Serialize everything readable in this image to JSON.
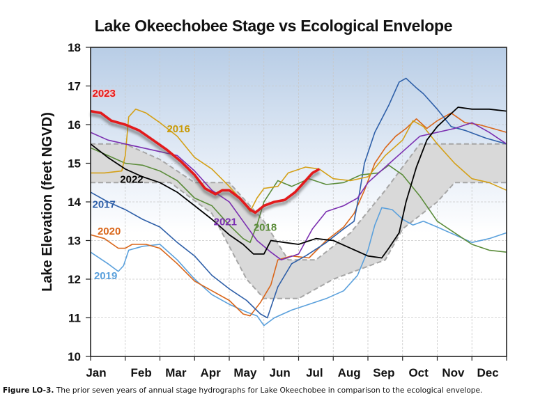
{
  "chart_data": {
    "type": "line",
    "title": "Lake Okeechobee Stage vs Ecological Envelope",
    "xlabel": "",
    "ylabel": "Lake Elevation (feet NGVD)",
    "ylim": [
      10,
      18
    ],
    "xlim": [
      0,
      12
    ],
    "yticks": [
      10,
      11,
      12,
      13,
      14,
      15,
      16,
      17,
      18
    ],
    "categories": [
      "Jan",
      "Feb",
      "Mar",
      "Apr",
      "May",
      "Jun",
      "Jul",
      "Aug",
      "Sep",
      "Oct",
      "Nov",
      "Dec"
    ],
    "grid": true,
    "x_units": "months since Jan 1",
    "envelope": {
      "name": "Ecological Envelope",
      "color": "#d9d9d9",
      "upper": [
        [
          0,
          15.5
        ],
        [
          1,
          15.5
        ],
        [
          2,
          15.1
        ],
        [
          3,
          14.5
        ],
        [
          4,
          14.5
        ],
        [
          5,
          13.5
        ],
        [
          5.7,
          12.5
        ],
        [
          6.5,
          12.5
        ],
        [
          7.5,
          13.2
        ],
        [
          8.5,
          14.3
        ],
        [
          9.5,
          15.5
        ],
        [
          12,
          15.5
        ]
      ],
      "lower": [
        [
          0,
          14.5
        ],
        [
          2.3,
          14.5
        ],
        [
          3.5,
          13.7
        ],
        [
          4.5,
          12.0
        ],
        [
          5,
          11.5
        ],
        [
          6,
          11.5
        ],
        [
          7,
          12.0
        ],
        [
          8.5,
          12.5
        ],
        [
          9,
          13.3
        ],
        [
          10,
          14.0
        ],
        [
          10.5,
          14.5
        ],
        [
          12,
          14.5
        ]
      ]
    },
    "series": [
      {
        "name": "2023",
        "color": "#e31a1c",
        "label_color": "#e31a1c",
        "values": [
          [
            0,
            16.35
          ],
          [
            0.3,
            16.3
          ],
          [
            0.6,
            16.1
          ],
          [
            1,
            16.0
          ],
          [
            1.4,
            15.85
          ],
          [
            1.8,
            15.6
          ],
          [
            2.2,
            15.35
          ],
          [
            2.6,
            15.05
          ],
          [
            3,
            14.7
          ],
          [
            3.3,
            14.35
          ],
          [
            3.6,
            14.2
          ],
          [
            3.8,
            14.3
          ],
          [
            4.0,
            14.3
          ],
          [
            4.3,
            14.1
          ],
          [
            4.6,
            13.8
          ],
          [
            4.75,
            13.72
          ],
          [
            5.0,
            13.9
          ],
          [
            5.3,
            14.0
          ],
          [
            5.6,
            14.05
          ],
          [
            5.9,
            14.25
          ],
          [
            6.2,
            14.55
          ],
          [
            6.4,
            14.75
          ],
          [
            6.6,
            14.85
          ]
        ]
      },
      {
        "name": "2022",
        "color": "#000000",
        "label_color": "#000000",
        "values": [
          [
            0,
            15.5
          ],
          [
            0.5,
            15.15
          ],
          [
            1,
            14.85
          ],
          [
            1.5,
            14.65
          ],
          [
            2,
            14.5
          ],
          [
            2.5,
            14.25
          ],
          [
            3,
            13.9
          ],
          [
            3.5,
            13.55
          ],
          [
            4,
            13.15
          ],
          [
            4.4,
            12.9
          ],
          [
            4.7,
            12.65
          ],
          [
            5,
            12.65
          ],
          [
            5.2,
            13.0
          ],
          [
            5.6,
            12.95
          ],
          [
            6,
            12.9
          ],
          [
            6.5,
            13.05
          ],
          [
            7,
            13.0
          ],
          [
            7.5,
            12.8
          ],
          [
            8,
            12.6
          ],
          [
            8.4,
            12.55
          ],
          [
            8.6,
            12.8
          ],
          [
            8.9,
            13.2
          ],
          [
            9.1,
            14.0
          ],
          [
            9.4,
            14.9
          ],
          [
            9.7,
            15.6
          ],
          [
            10,
            15.95
          ],
          [
            10.3,
            16.2
          ],
          [
            10.6,
            16.45
          ],
          [
            11,
            16.4
          ],
          [
            11.5,
            16.4
          ],
          [
            12,
            16.35
          ]
        ]
      },
      {
        "name": "2021",
        "color": "#7b2fb0",
        "label_color": "#7b2fb0",
        "values": [
          [
            0,
            15.8
          ],
          [
            0.5,
            15.6
          ],
          [
            1,
            15.5
          ],
          [
            1.5,
            15.4
          ],
          [
            2,
            15.3
          ],
          [
            2.5,
            15.2
          ],
          [
            3,
            14.8
          ],
          [
            3.5,
            14.3
          ],
          [
            4,
            14.0
          ],
          [
            4.4,
            13.5
          ],
          [
            4.8,
            13.0
          ],
          [
            5.2,
            12.7
          ],
          [
            5.5,
            12.5
          ],
          [
            6,
            12.65
          ],
          [
            6.4,
            13.3
          ],
          [
            6.8,
            13.75
          ],
          [
            7.3,
            13.9
          ],
          [
            7.7,
            14.1
          ],
          [
            8,
            14.5
          ],
          [
            8.5,
            14.9
          ],
          [
            9,
            15.3
          ],
          [
            9.5,
            15.7
          ],
          [
            10,
            15.8
          ],
          [
            10.5,
            15.9
          ],
          [
            11,
            16.05
          ],
          [
            11.5,
            15.8
          ],
          [
            12,
            15.5
          ]
        ]
      },
      {
        "name": "2016",
        "color": "#d4a017",
        "label_color": "#c99a06",
        "values": [
          [
            0,
            14.75
          ],
          [
            0.4,
            14.75
          ],
          [
            0.9,
            14.8
          ],
          [
            1.0,
            15.2
          ],
          [
            1.1,
            16.2
          ],
          [
            1.3,
            16.4
          ],
          [
            1.6,
            16.3
          ],
          [
            2,
            16.05
          ],
          [
            2.5,
            15.7
          ],
          [
            3,
            15.15
          ],
          [
            3.5,
            14.85
          ],
          [
            4,
            14.4
          ],
          [
            4.4,
            14.0
          ],
          [
            4.6,
            13.75
          ],
          [
            4.8,
            14.1
          ],
          [
            5,
            14.35
          ],
          [
            5.4,
            14.4
          ],
          [
            5.7,
            14.75
          ],
          [
            6.2,
            14.9
          ],
          [
            6.6,
            14.85
          ],
          [
            7,
            14.6
          ],
          [
            7.5,
            14.55
          ],
          [
            8,
            14.65
          ],
          [
            8.5,
            15.2
          ],
          [
            9,
            15.6
          ],
          [
            9.3,
            16.1
          ],
          [
            9.6,
            15.95
          ],
          [
            10,
            15.5
          ],
          [
            10.5,
            15.0
          ],
          [
            11,
            14.6
          ],
          [
            11.5,
            14.5
          ],
          [
            12,
            14.3
          ]
        ]
      },
      {
        "name": "2018",
        "color": "#5b8c3a",
        "label_color": "#5b8c3a",
        "values": [
          [
            0,
            15.4
          ],
          [
            0.5,
            15.2
          ],
          [
            1,
            15.0
          ],
          [
            1.5,
            14.95
          ],
          [
            2,
            14.8
          ],
          [
            2.5,
            14.55
          ],
          [
            3,
            14.1
          ],
          [
            3.5,
            13.9
          ],
          [
            4,
            13.4
          ],
          [
            4.4,
            13.05
          ],
          [
            4.6,
            12.95
          ],
          [
            4.8,
            13.4
          ],
          [
            5,
            14.0
          ],
          [
            5.4,
            14.55
          ],
          [
            5.8,
            14.4
          ],
          [
            6.3,
            14.6
          ],
          [
            6.8,
            14.45
          ],
          [
            7.3,
            14.5
          ],
          [
            7.8,
            14.7
          ],
          [
            8.3,
            14.75
          ],
          [
            8.6,
            14.95
          ],
          [
            9,
            14.7
          ],
          [
            9.5,
            14.15
          ],
          [
            10,
            13.5
          ],
          [
            10.5,
            13.2
          ],
          [
            11,
            12.9
          ],
          [
            11.5,
            12.75
          ],
          [
            12,
            12.7
          ]
        ]
      },
      {
        "name": "2017",
        "color": "#2e5fa8",
        "label_color": "#2e5fa8",
        "values": [
          [
            0,
            14.25
          ],
          [
            0.5,
            14.0
          ],
          [
            1,
            13.8
          ],
          [
            1.5,
            13.55
          ],
          [
            2,
            13.35
          ],
          [
            2.5,
            12.95
          ],
          [
            3,
            12.6
          ],
          [
            3.5,
            12.1
          ],
          [
            4,
            11.75
          ],
          [
            4.5,
            11.45
          ],
          [
            4.9,
            11.1
          ],
          [
            5.1,
            11.0
          ],
          [
            5.4,
            11.8
          ],
          [
            5.8,
            12.4
          ],
          [
            6.2,
            12.6
          ],
          [
            6.8,
            12.95
          ],
          [
            7.3,
            13.3
          ],
          [
            7.6,
            13.5
          ],
          [
            7.75,
            14.2
          ],
          [
            7.9,
            15.0
          ],
          [
            8.2,
            15.8
          ],
          [
            8.6,
            16.5
          ],
          [
            8.9,
            17.1
          ],
          [
            9.1,
            17.2
          ],
          [
            9.4,
            16.95
          ],
          [
            9.6,
            16.8
          ],
          [
            10,
            16.4
          ],
          [
            10.4,
            15.95
          ],
          [
            10.8,
            15.85
          ],
          [
            11.4,
            15.65
          ],
          [
            12,
            15.5
          ]
        ]
      },
      {
        "name": "2020",
        "color": "#d9661a",
        "label_color": "#d9661a",
        "values": [
          [
            0,
            13.15
          ],
          [
            0.4,
            13.05
          ],
          [
            0.8,
            12.8
          ],
          [
            1.0,
            12.8
          ],
          [
            1.2,
            12.9
          ],
          [
            1.6,
            12.9
          ],
          [
            2,
            12.8
          ],
          [
            2.5,
            12.4
          ],
          [
            3,
            11.95
          ],
          [
            3.5,
            11.7
          ],
          [
            4,
            11.45
          ],
          [
            4.4,
            11.1
          ],
          [
            4.6,
            11.05
          ],
          [
            4.9,
            11.4
          ],
          [
            5.2,
            11.85
          ],
          [
            5.4,
            12.5
          ],
          [
            5.8,
            12.6
          ],
          [
            6.3,
            12.55
          ],
          [
            6.8,
            13.0
          ],
          [
            7.3,
            13.35
          ],
          [
            7.6,
            13.7
          ],
          [
            7.9,
            14.3
          ],
          [
            8.2,
            15.0
          ],
          [
            8.5,
            15.4
          ],
          [
            8.8,
            15.7
          ],
          [
            9.1,
            15.9
          ],
          [
            9.4,
            16.15
          ],
          [
            9.7,
            15.9
          ],
          [
            10,
            16.1
          ],
          [
            10.4,
            16.3
          ],
          [
            10.8,
            16.05
          ],
          [
            11.2,
            16.0
          ],
          [
            11.6,
            15.9
          ],
          [
            12,
            15.8
          ]
        ]
      },
      {
        "name": "2019",
        "color": "#5aa0dc",
        "label_color": "#5aa0dc",
        "values": [
          [
            0,
            12.7
          ],
          [
            0.5,
            12.4
          ],
          [
            0.8,
            12.2
          ],
          [
            0.95,
            12.35
          ],
          [
            1.1,
            12.75
          ],
          [
            1.5,
            12.85
          ],
          [
            2,
            12.9
          ],
          [
            2.5,
            12.5
          ],
          [
            3,
            12.0
          ],
          [
            3.5,
            11.6
          ],
          [
            4,
            11.35
          ],
          [
            4.5,
            11.15
          ],
          [
            4.8,
            11.05
          ],
          [
            5,
            10.8
          ],
          [
            5.3,
            11.0
          ],
          [
            5.8,
            11.2
          ],
          [
            6.3,
            11.35
          ],
          [
            6.8,
            11.5
          ],
          [
            7.3,
            11.7
          ],
          [
            7.7,
            12.1
          ],
          [
            8,
            12.75
          ],
          [
            8.2,
            13.4
          ],
          [
            8.4,
            13.85
          ],
          [
            8.7,
            13.8
          ],
          [
            9,
            13.55
          ],
          [
            9.3,
            13.4
          ],
          [
            9.6,
            13.5
          ],
          [
            10,
            13.35
          ],
          [
            10.5,
            13.15
          ],
          [
            11,
            12.95
          ],
          [
            11.5,
            13.05
          ],
          [
            12,
            13.2
          ]
        ]
      }
    ]
  },
  "caption": {
    "label": "Figure LO-3.",
    "text": " The prior seven years of annual stage hydrographs for Lake Okeechobee in comparison to the ecological envelope."
  }
}
